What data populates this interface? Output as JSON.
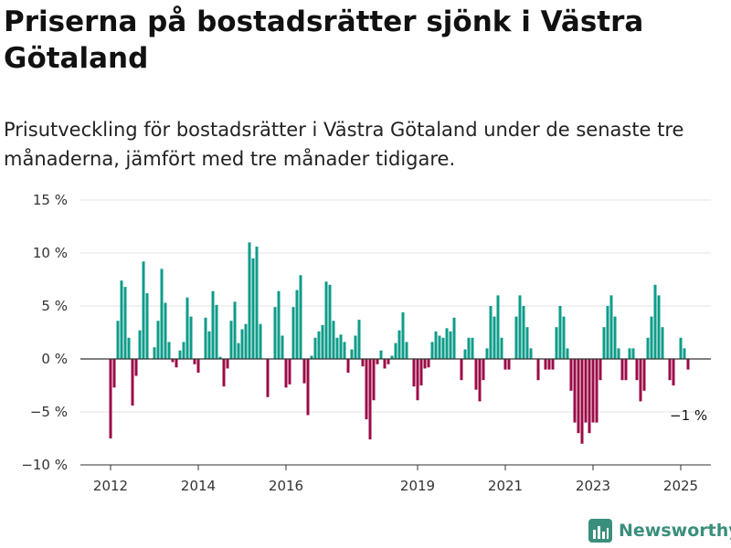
{
  "header": {
    "title": "Priserna på bostadsrätter sjönk i Västra Götaland",
    "subtitle": "Prisutveckling för bostadsrätter i Västra Götaland under de senaste tre månaderna, jämfört med tre månader tidigare."
  },
  "brand": {
    "name": "Newsworthy",
    "color": "#3a8f7c"
  },
  "chart_data": {
    "type": "bar",
    "title": "Priserna på bostadsrätter sjönk i Västra Götaland",
    "subtitle": "Prisutveckling för bostadsrätter i Västra Götaland under de senaste tre månaderna, jämfört med tre månader tidigare.",
    "xlabel": "",
    "ylabel": "",
    "ylim": [
      -10,
      15
    ],
    "grid": true,
    "y_ticks": [
      15,
      10,
      5,
      0,
      -5,
      -10
    ],
    "y_tick_labels": [
      "15 %",
      "10 %",
      "5 %",
      "0 %",
      "−5 %",
      "−10 %"
    ],
    "x_ticks": [
      "2012",
      "2014",
      "2016",
      "2019",
      "2021",
      "2023",
      "2025"
    ],
    "colors": {
      "positive": "#0e9c8a",
      "negative": "#9b0b47",
      "grid": "#e3e3e3",
      "axis": "#333333"
    },
    "annotation": {
      "text": "−1 %",
      "month": "2024-11"
    },
    "start_month": "2012-01",
    "values": [
      -7.5,
      -2.7,
      3.6,
      7.4,
      6.8,
      2.0,
      -4.4,
      -1.6,
      2.7,
      9.2,
      6.2,
      0.0,
      1.1,
      3.6,
      8.5,
      5.3,
      1.6,
      -0.3,
      -0.8,
      0.8,
      1.6,
      5.8,
      4.0,
      -0.5,
      -1.3,
      0.0,
      3.9,
      2.6,
      6.4,
      5.1,
      0.2,
      -2.6,
      -0.9,
      3.6,
      5.4,
      1.5,
      2.8,
      3.3,
      11.0,
      9.5,
      10.6,
      3.3,
      0.0,
      -3.6,
      0.0,
      4.9,
      6.4,
      2.2,
      -2.7,
      -2.4,
      4.9,
      6.5,
      7.9,
      -2.3,
      -5.3,
      0.3,
      2.0,
      2.6,
      3.2,
      7.3,
      7.0,
      3.6,
      2.0,
      2.3,
      1.6,
      -1.3,
      0.9,
      2.2,
      3.7,
      -0.7,
      -5.7,
      -7.6,
      -3.9,
      -0.5,
      0.8,
      -0.9,
      -0.5,
      0.3,
      1.5,
      2.7,
      4.4,
      1.6,
      0.0,
      -2.6,
      -3.9,
      -2.5,
      -0.9,
      -0.8,
      1.6,
      2.6,
      2.2,
      2.0,
      2.9,
      2.6,
      3.9,
      0.0,
      -2.0,
      0.9,
      2.0,
      2.0,
      -2.9,
      -4.0,
      -2.0,
      1.0,
      5.0,
      4.0,
      6.0,
      2.0,
      -1.0,
      -1.0,
      0.0,
      4.0,
      6.0,
      5.0,
      3.0,
      1.0,
      0.0,
      -2.0,
      0.0,
      -1.0,
      -1.0,
      -1.0,
      3.0,
      5.0,
      4.0,
      1.0,
      -3.0,
      -6.0,
      -7.0,
      -8.0,
      -6.0,
      -7.0,
      -6.0,
      -6.0,
      -2.0,
      3.0,
      5.0,
      6.0,
      4.0,
      1.0,
      -2.0,
      -2.0,
      1.0,
      1.0,
      -2.0,
      -4.0,
      -3.0,
      2.0,
      4.0,
      7.0,
      6.0,
      3.0,
      0.0,
      -2.0,
      -2.5,
      0.0,
      2.0,
      1.0,
      -1.0
    ]
  }
}
